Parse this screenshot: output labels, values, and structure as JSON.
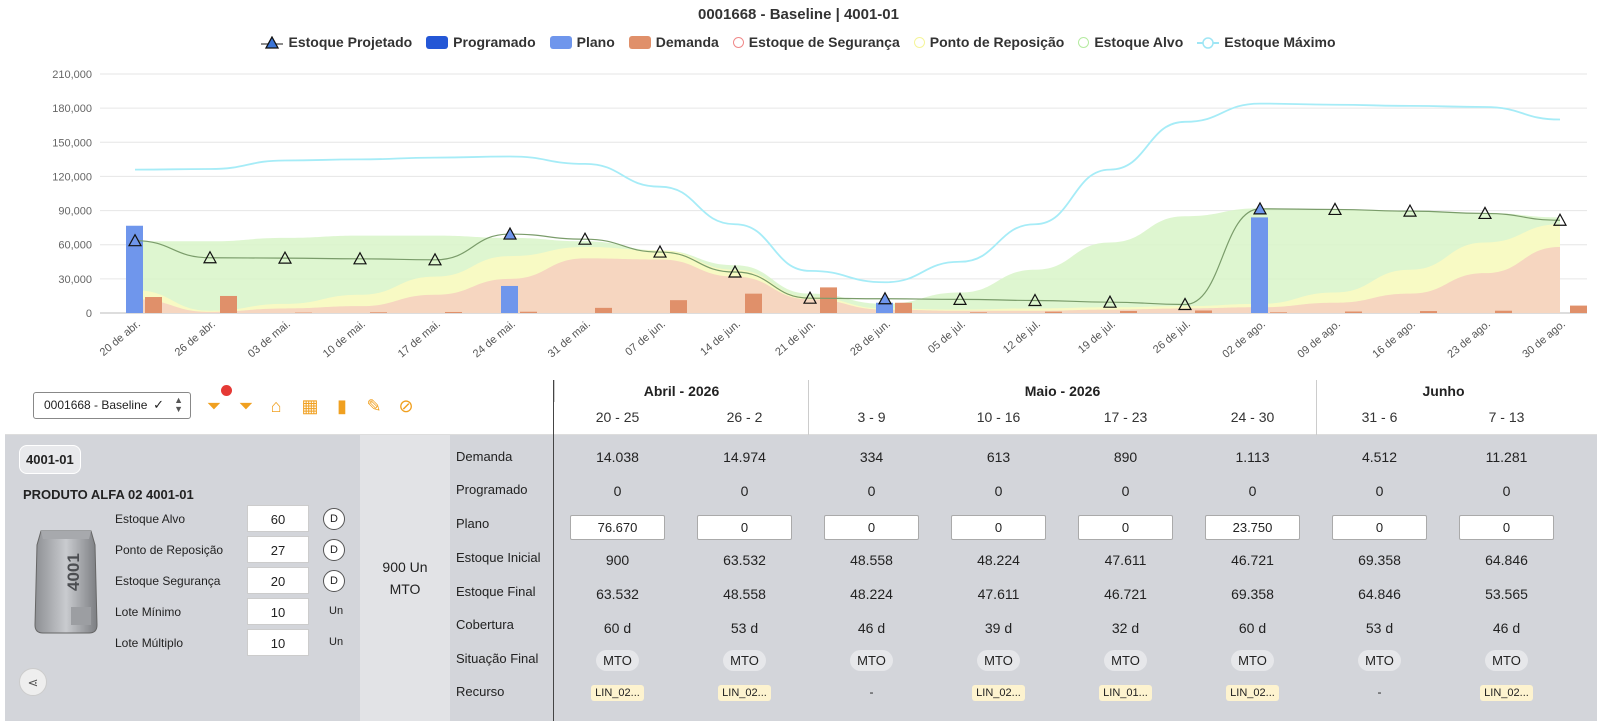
{
  "chart": {
    "title": "0001668 - Baseline | 4001-01",
    "legend": [
      {
        "label": "Estoque Projetado",
        "kind": "triangle",
        "color": "#1f2a44"
      },
      {
        "label": "Programado",
        "kind": "box",
        "color": "#2457d6"
      },
      {
        "label": "Plano",
        "kind": "box",
        "color": "#6f96ec"
      },
      {
        "label": "Demanda",
        "kind": "box",
        "color": "#e0906a"
      },
      {
        "label": "Estoque de Segurança",
        "kind": "circle",
        "color": "#f08a8a"
      },
      {
        "label": "Ponto de Reposição",
        "kind": "circle",
        "color": "#f5f59a"
      },
      {
        "label": "Estoque Alvo",
        "kind": "circle",
        "color": "#b5eba0"
      },
      {
        "label": "Estoque Máximo",
        "kind": "line",
        "color": "#9fe6f5"
      }
    ]
  },
  "chart_data": {
    "type": "bar",
    "ylim": [
      0,
      210000
    ],
    "yticks": [
      "0",
      "30,000",
      "60,000",
      "90,000",
      "120,000",
      "150,000",
      "180,000",
      "210,000"
    ],
    "ytick_values": [
      0,
      30000,
      60000,
      90000,
      120000,
      150000,
      180000,
      210000
    ],
    "categories": [
      "20 de abr.",
      "26 de abr.",
      "03 de mai.",
      "10 de mai.",
      "17 de mai.",
      "24 de mai.",
      "31 de mai.",
      "07 de jun.",
      "14 de jun.",
      "21 de jun.",
      "28 de jun.",
      "05 de jul.",
      "12 de jul.",
      "19 de jul.",
      "26 de jul.",
      "02 de ago.",
      "09 de ago.",
      "16 de ago.",
      "23 de ago.",
      "30 de ago."
    ],
    "series": [
      {
        "name": "Estoque Projetado",
        "values": [
          63532,
          48558,
          48224,
          47611,
          46721,
          69358,
          64846,
          53565,
          36000,
          13000,
          12500,
          12000,
          11000,
          9500,
          7500,
          91500,
          91000,
          89500,
          87500,
          81500
        ]
      },
      {
        "name": "Programado",
        "values": [
          0,
          0,
          0,
          0,
          0,
          0,
          0,
          0,
          0,
          0,
          0,
          0,
          0,
          0,
          0,
          0,
          0,
          0,
          0,
          0
        ]
      },
      {
        "name": "Plano",
        "values": [
          76670,
          0,
          0,
          0,
          0,
          23750,
          0,
          0,
          0,
          0,
          9000,
          0,
          0,
          0,
          0,
          84000,
          0,
          0,
          0,
          0
        ]
      },
      {
        "name": "Demanda",
        "values": [
          14038,
          14974,
          334,
          613,
          890,
          1113,
          4512,
          11281,
          17000,
          22500,
          9000,
          600,
          1200,
          1800,
          2200,
          600,
          1300,
          1700,
          2000,
          6500
        ]
      },
      {
        "name": "Estoque de Segurança",
        "values": [
          12000,
          1000,
          4000,
          6000,
          16000,
          30000,
          48000,
          47000,
          32000,
          12000,
          3000,
          2000,
          2000,
          3000,
          4000,
          5000,
          9000,
          17000,
          35000,
          58000
        ]
      },
      {
        "name": "Ponto de Reposição",
        "values": [
          20000,
          2000,
          8000,
          16000,
          32000,
          50000,
          58000,
          55000,
          38000,
          14000,
          4000,
          3000,
          4000,
          5000,
          6000,
          8000,
          18000,
          38000,
          62000,
          78000
        ]
      },
      {
        "name": "Estoque Alvo",
        "values": [
          63000,
          63000,
          66000,
          68000,
          68000,
          66000,
          63000,
          55000,
          42000,
          17000,
          8000,
          18000,
          38000,
          62000,
          85000,
          92000,
          91000,
          90000,
          88000,
          84000
        ]
      },
      {
        "name": "Estoque Máximo",
        "values": [
          126000,
          126500,
          134000,
          135000,
          136500,
          137500,
          131000,
          111000,
          78000,
          37000,
          27000,
          45000,
          78000,
          126000,
          168000,
          184000,
          183000,
          182000,
          181000,
          170000
        ]
      }
    ]
  },
  "toolbar": {
    "scenario": "0001668 - Baseline",
    "icons": [
      "filter-alert-icon",
      "filter-remove-icon",
      "factory-icon",
      "calendar-icon",
      "bar-chart-icon",
      "pencil-icon",
      "chart-off-icon"
    ]
  },
  "product": {
    "code": "4001-01",
    "name": "PRODUTO ALFA 02 4001-01",
    "params": [
      {
        "label": "Estoque Alvo",
        "value": "60",
        "suffix": "D",
        "kind": "badge"
      },
      {
        "label": "Ponto de Reposição",
        "value": "27",
        "suffix": "D",
        "kind": "badge"
      },
      {
        "label": "Estoque Segurança",
        "value": "20",
        "suffix": "D",
        "kind": "badge"
      },
      {
        "label": "Lote Mínimo",
        "value": "10",
        "suffix": "Un",
        "kind": "unit"
      },
      {
        "label": "Lote Múltiplo",
        "value": "10",
        "suffix": "Un",
        "kind": "unit"
      }
    ],
    "stock_line1": "900 Un",
    "stock_line2": "MTO"
  },
  "rows": [
    "Demanda",
    "Programado",
    "Plano",
    "Estoque Inicial",
    "Estoque Final",
    "Cobertura",
    "Situação Final",
    "Recurso"
  ],
  "months": [
    {
      "label": "Abril - 2026",
      "span": 2
    },
    {
      "label": "Maio - 2026",
      "span": 4
    },
    {
      "label": "Junho",
      "span": 2
    }
  ],
  "weeks": [
    {
      "label": "20 - 25",
      "demanda": "14.038",
      "programado": "0",
      "plano": "76.670",
      "inicial": "900",
      "final": "63.532",
      "cobertura": "60 d",
      "situacao": "MTO",
      "recurso": "LIN_02..."
    },
    {
      "label": "26 - 2",
      "demanda": "14.974",
      "programado": "0",
      "plano": "0",
      "inicial": "63.532",
      "final": "48.558",
      "cobertura": "53 d",
      "situacao": "MTO",
      "recurso": "LIN_02..."
    },
    {
      "label": "3 - 9",
      "demanda": "334",
      "programado": "0",
      "plano": "0",
      "inicial": "48.558",
      "final": "48.224",
      "cobertura": "46 d",
      "situacao": "MTO",
      "recurso": "-"
    },
    {
      "label": "10 - 16",
      "demanda": "613",
      "programado": "0",
      "plano": "0",
      "inicial": "48.224",
      "final": "47.611",
      "cobertura": "39 d",
      "situacao": "MTO",
      "recurso": "LIN_02..."
    },
    {
      "label": "17 - 23",
      "demanda": "890",
      "programado": "0",
      "plano": "0",
      "inicial": "47.611",
      "final": "46.721",
      "cobertura": "32 d",
      "situacao": "MTO",
      "recurso": "LIN_01..."
    },
    {
      "label": "24 - 30",
      "demanda": "1.113",
      "programado": "0",
      "plano": "23.750",
      "inicial": "46.721",
      "final": "69.358",
      "cobertura": "60 d",
      "situacao": "MTO",
      "recurso": "LIN_02..."
    },
    {
      "label": "31 - 6",
      "demanda": "4.512",
      "programado": "0",
      "plano": "0",
      "inicial": "69.358",
      "final": "64.846",
      "cobertura": "53 d",
      "situacao": "MTO",
      "recurso": "-"
    },
    {
      "label": "7 - 13",
      "demanda": "11.281",
      "programado": "0",
      "plano": "0",
      "inicial": "64.846",
      "final": "53.565",
      "cobertura": "46 d",
      "situacao": "MTO",
      "recurso": "LIN_02..."
    }
  ]
}
